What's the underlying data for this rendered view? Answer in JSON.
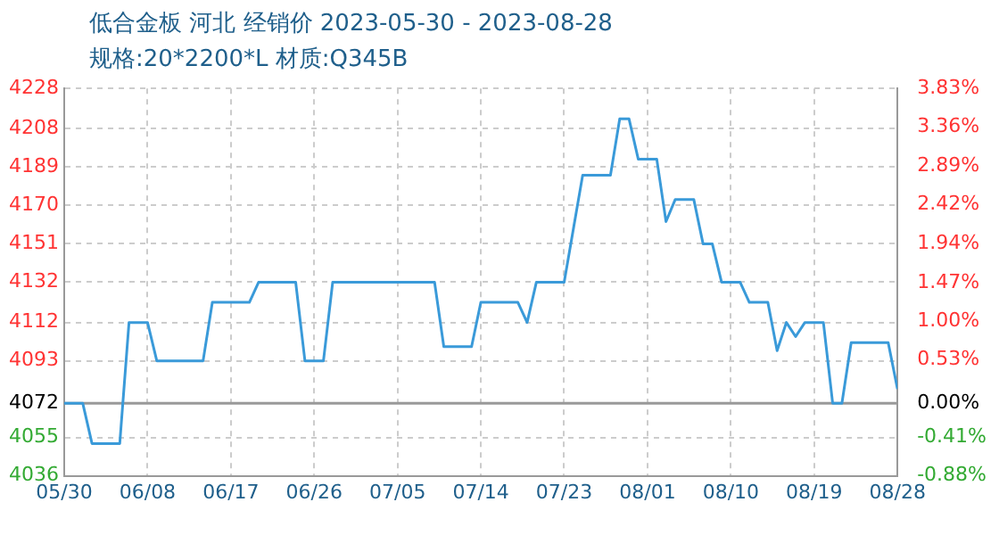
{
  "chart_data": {
    "type": "line",
    "title": "低合金板 河北 经销价 2023-05-30 - 2023-08-28",
    "subtitle": "规格:20*2200*L 材质:Q345B",
    "x": [
      "2023-05-30",
      "2023-06-01",
      "2023-06-02",
      "2023-06-05",
      "2023-06-06",
      "2023-06-08",
      "2023-06-09",
      "2023-06-14",
      "2023-06-15",
      "2023-06-19",
      "2023-06-20",
      "2023-06-24",
      "2023-06-25",
      "2023-06-27",
      "2023-06-28",
      "2023-07-09",
      "2023-07-10",
      "2023-07-13",
      "2023-07-14",
      "2023-07-18",
      "2023-07-19",
      "2023-07-20",
      "2023-07-23",
      "2023-07-25",
      "2023-07-28",
      "2023-07-29",
      "2023-07-30",
      "2023-07-31",
      "2023-08-02",
      "2023-08-03",
      "2023-08-04",
      "2023-08-06",
      "2023-08-07",
      "2023-08-08",
      "2023-08-09",
      "2023-08-11",
      "2023-08-12",
      "2023-08-14",
      "2023-08-15",
      "2023-08-16",
      "2023-08-17",
      "2023-08-18",
      "2023-08-20",
      "2023-08-21",
      "2023-08-22",
      "2023-08-23",
      "2023-08-27",
      "2023-08-28"
    ],
    "series": [
      {
        "color": "#3a9ad9",
        "values": [
          4072,
          4072,
          4052,
          4052,
          4112,
          4112,
          4093,
          4093,
          4122,
          4122,
          4132,
          4132,
          4093,
          4093,
          4132,
          4132,
          4100,
          4100,
          4122,
          4122,
          4112,
          4132,
          4132,
          4185,
          4185,
          4213,
          4213,
          4193,
          4193,
          4162,
          4173,
          4173,
          4151,
          4151,
          4132,
          4132,
          4122,
          4122,
          4098,
          4112,
          4105,
          4112,
          4112,
          4072,
          4072,
          4102,
          4102,
          4079
        ]
      }
    ],
    "xlim": [
      "2023-05-30",
      "2023-08-28"
    ],
    "xticks": [
      {
        "value": "2023-05-30",
        "label": "05/30"
      },
      {
        "value": "2023-06-08",
        "label": "06/08"
      },
      {
        "value": "2023-06-17",
        "label": "06/17"
      },
      {
        "value": "2023-06-26",
        "label": "06/26"
      },
      {
        "value": "2023-07-05",
        "label": "07/05"
      },
      {
        "value": "2023-07-14",
        "label": "07/14"
      },
      {
        "value": "2023-07-23",
        "label": "07/23"
      },
      {
        "value": "2023-08-01",
        "label": "08/01"
      },
      {
        "value": "2023-08-10",
        "label": "08/10"
      },
      {
        "value": "2023-08-19",
        "label": "08/19"
      },
      {
        "value": "2023-08-28",
        "label": "08/28"
      }
    ],
    "ylim": [
      4036,
      4228
    ],
    "yticks": [
      4036,
      4055,
      4072,
      4093,
      4112,
      4132,
      4151,
      4170,
      4189,
      4208,
      4228
    ],
    "y2lim": [
      -0.88,
      3.83
    ],
    "y2ticks": [
      {
        "value": -0.88,
        "label": "-0.88%"
      },
      {
        "value": -0.41,
        "label": "-0.41%"
      },
      {
        "value": 0,
        "label": "0.00%"
      },
      {
        "value": 0.53,
        "label": "0.53%"
      },
      {
        "value": 1,
        "label": "1.00%"
      },
      {
        "value": 1.47,
        "label": "1.47%"
      },
      {
        "value": 1.94,
        "label": "1.94%"
      },
      {
        "value": 2.42,
        "label": "2.42%"
      },
      {
        "value": 2.89,
        "label": "2.89%"
      },
      {
        "value": 3.36,
        "label": "3.36%"
      },
      {
        "value": 3.83,
        "label": "3.83%"
      }
    ],
    "ref_lines": [
      {
        "axis": "y",
        "value": 4072,
        "color": "#999999",
        "line_style": "solid"
      }
    ],
    "grid": true,
    "legend": false,
    "marker": "none",
    "line_style": "solid"
  }
}
